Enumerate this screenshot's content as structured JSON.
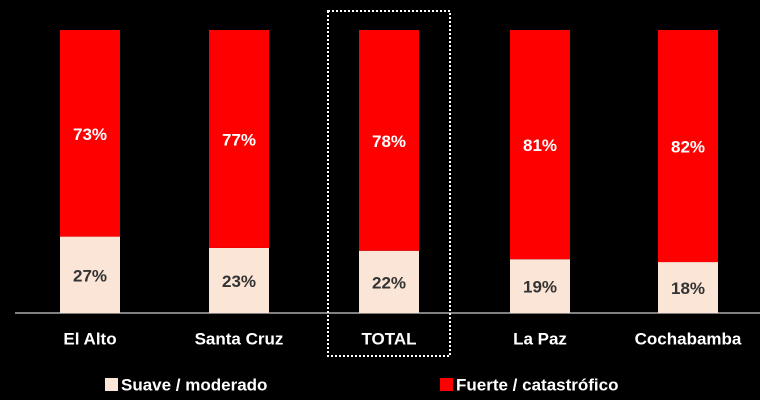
{
  "chart_data": {
    "type": "stacked_bar",
    "categories": [
      "El Alto",
      "Santa Cruz",
      "TOTAL",
      "La Paz",
      "Cochabamba"
    ],
    "series": [
      {
        "name": "Suave / moderado",
        "color": "#fbe5d6",
        "values": [
          27,
          23,
          22,
          19,
          18
        ],
        "value_labels": [
          "27%",
          "23%",
          "22%",
          "19%",
          "18%"
        ]
      },
      {
        "name": "Fuerte / catastrófico",
        "color": "#ff0000",
        "values": [
          73,
          77,
          78,
          81,
          82
        ],
        "value_labels": [
          "73%",
          "77%",
          "78%",
          "81%",
          "82%"
        ]
      }
    ],
    "highlighted_category": "TOTAL",
    "legend": "bottom"
  }
}
